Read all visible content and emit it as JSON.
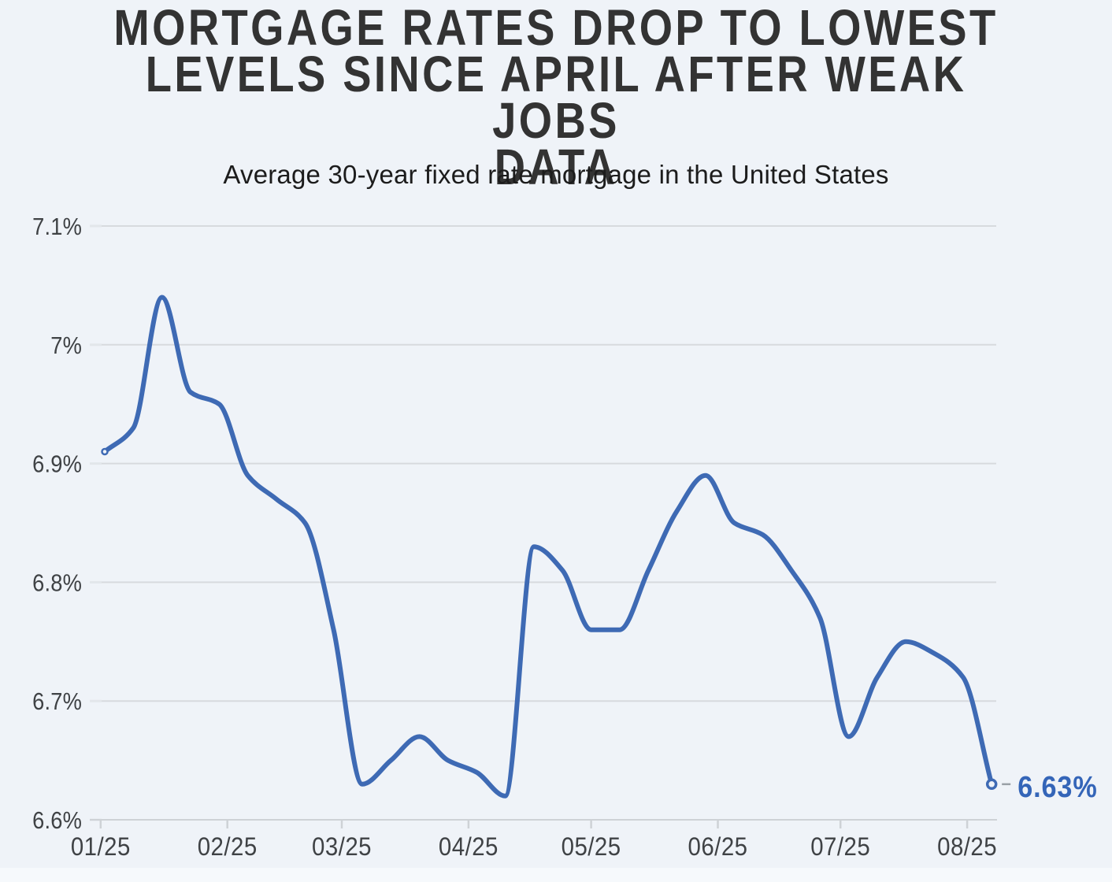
{
  "colors": {
    "background": "#eff3f8",
    "line": "#3e6ab4",
    "annotation_text": "#3465b8",
    "grid": "#d7dade",
    "grid_nub": "#e2e6ea",
    "axis_line": "#ced2d6",
    "axis_text": "#3f4245",
    "title_text": "#333333",
    "subtitle_text": "#1c1c1c",
    "leader_dash": "#9aa0a6",
    "marker_fill": "#eff3f8"
  },
  "chart_data": {
    "type": "line",
    "title": "MORTGAGE RATES DROP TO LOWEST LEVELS SINCE APRIL AFTER WEAK JOBS DATA",
    "title_lines": [
      "MORTGAGE RATES DROP TO LOWEST",
      "LEVELS SINCE APRIL AFTER WEAK JOBS",
      "DATA"
    ],
    "subtitle": "Average 30-year fixed rate mortgage in the United States",
    "grid": "horizontal",
    "legend": "none",
    "ylim": [
      6.6,
      7.1
    ],
    "y_ticks": [
      {
        "label": "6.6%",
        "value": 6.6
      },
      {
        "label": "6.7%",
        "value": 6.7
      },
      {
        "label": "6.8%",
        "value": 6.8
      },
      {
        "label": "6.9%",
        "value": 6.9
      },
      {
        "label": "7%",
        "value": 7.0
      },
      {
        "label": "7.1%",
        "value": 7.1
      }
    ],
    "x_ticks": [
      {
        "label": "01/25",
        "date": "2025-01-01"
      },
      {
        "label": "02/25",
        "date": "2025-02-01"
      },
      {
        "label": "03/25",
        "date": "2025-03-01"
      },
      {
        "label": "04/25",
        "date": "2025-04-01"
      },
      {
        "label": "05/25",
        "date": "2025-05-01"
      },
      {
        "label": "06/25",
        "date": "2025-06-01"
      },
      {
        "label": "07/25",
        "date": "2025-07-01"
      },
      {
        "label": "08/25",
        "date": "2025-08-01"
      }
    ],
    "series": [
      {
        "name": "Average 30-year fixed rate mortgage",
        "points": [
          [
            "2025-01-02",
            6.91
          ],
          [
            "2025-01-09",
            6.93
          ],
          [
            "2025-01-16",
            7.04
          ],
          [
            "2025-01-23",
            6.96
          ],
          [
            "2025-01-30",
            6.95
          ],
          [
            "2025-02-06",
            6.89
          ],
          [
            "2025-02-13",
            6.87
          ],
          [
            "2025-02-20",
            6.85
          ],
          [
            "2025-02-27",
            6.76
          ],
          [
            "2025-03-06",
            6.63
          ],
          [
            "2025-03-13",
            6.65
          ],
          [
            "2025-03-20",
            6.67
          ],
          [
            "2025-03-27",
            6.65
          ],
          [
            "2025-04-03",
            6.64
          ],
          [
            "2025-04-10",
            6.62
          ],
          [
            "2025-04-17",
            6.83
          ],
          [
            "2025-04-24",
            6.81
          ],
          [
            "2025-05-01",
            6.76
          ],
          [
            "2025-05-08",
            6.76
          ],
          [
            "2025-05-15",
            6.81
          ],
          [
            "2025-05-22",
            6.86
          ],
          [
            "2025-05-29",
            6.89
          ],
          [
            "2025-06-05",
            6.85
          ],
          [
            "2025-06-12",
            6.84
          ],
          [
            "2025-06-19",
            6.81
          ],
          [
            "2025-06-26",
            6.77
          ],
          [
            "2025-07-03",
            6.67
          ],
          [
            "2025-07-10",
            6.72
          ],
          [
            "2025-07-17",
            6.75
          ],
          [
            "2025-07-24",
            6.74
          ],
          [
            "2025-07-31",
            6.72
          ],
          [
            "2025-08-07",
            6.63
          ]
        ]
      }
    ],
    "end_annotation": {
      "label": "6.63%",
      "value": 6.63,
      "date": "2025-08-07"
    },
    "markers": "open circle at first and last point"
  }
}
